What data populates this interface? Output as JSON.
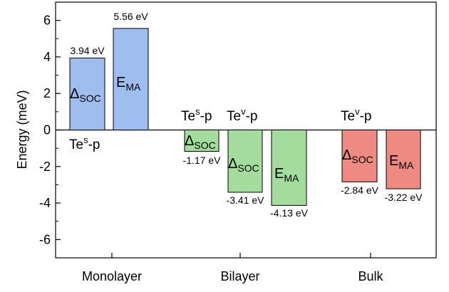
{
  "chart_data": {
    "type": "bar",
    "title": "",
    "xlabel": "",
    "ylabel": "Energy (meV)",
    "ylim": [
      -7,
      7
    ],
    "yticks": [
      -6,
      -4,
      -2,
      0,
      2,
      4,
      6
    ],
    "grid": false,
    "colors": {
      "blue": "#a0bdf0",
      "green": "#a3dc9c",
      "red": "#ee8a82",
      "stroke": "#000000"
    },
    "categories": [
      "Monolayer",
      "Bilayer",
      "Bulk"
    ],
    "bars": [
      {
        "group": "Monolayer",
        "value": 3.94,
        "label_main": "Δ",
        "label_sub": "SOC",
        "value_text": "3.94 eV",
        "color": "blue"
      },
      {
        "group": "Monolayer",
        "value": 5.56,
        "label_main": "E",
        "label_sub": "MA",
        "value_text": "5.56 eV",
        "color": "blue"
      },
      {
        "group": "Bilayer",
        "value": -1.17,
        "label_main": "Δ",
        "label_sub": "SOC",
        "value_text": "-1.17 eV",
        "color": "green"
      },
      {
        "group": "Bilayer",
        "value": -3.41,
        "label_main": "Δ",
        "label_sub": "SOC",
        "value_text": "-3.41 eV",
        "color": "green"
      },
      {
        "group": "Bilayer",
        "value": -4.13,
        "label_main": "E",
        "label_sub": "MA",
        "value_text": "-4.13 eV",
        "color": "green"
      },
      {
        "group": "Bulk",
        "value": -2.84,
        "label_main": "Δ",
        "label_sub": "SOC",
        "value_text": "-2.84 eV",
        "color": "red"
      },
      {
        "group": "Bulk",
        "value": -3.22,
        "label_main": "E",
        "label_sub": "MA",
        "value_text": "-3.22 eV",
        "color": "red"
      }
    ],
    "annotations": [
      {
        "base": "Te",
        "sup": "s",
        "suffix": "-p"
      },
      {
        "base": "Te",
        "sup": "s",
        "suffix": "-p"
      },
      {
        "base": "Te",
        "sup": "v",
        "suffix": "-p"
      },
      {
        "base": "Te",
        "sup": "v",
        "suffix": "-p"
      }
    ]
  }
}
